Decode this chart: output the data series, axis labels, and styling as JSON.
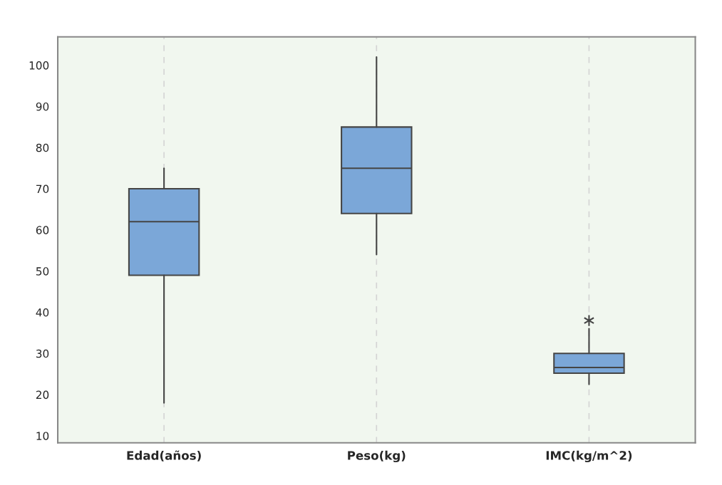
{
  "chart_data": {
    "type": "box",
    "categories": [
      "Edad(años)",
      "Peso(kg)",
      "IMC(kg/m^2)"
    ],
    "boxes": [
      {
        "low": 18,
        "q1": 49,
        "median": 62,
        "q3": 70,
        "high": 75
      },
      {
        "low": 54,
        "q1": 64,
        "median": 75,
        "q3": 85,
        "high": 102
      },
      {
        "low": 22.5,
        "q1": 25.2,
        "median": 26.6,
        "q3": 30,
        "high": 36,
        "outliers": [
          38
        ]
      }
    ],
    "color": "#7ba7d8",
    "ylim": [
      8.3,
      106.9
    ],
    "yticks": [
      10,
      20,
      30,
      40,
      50,
      60,
      70,
      80,
      90,
      100
    ],
    "grid": "x"
  }
}
